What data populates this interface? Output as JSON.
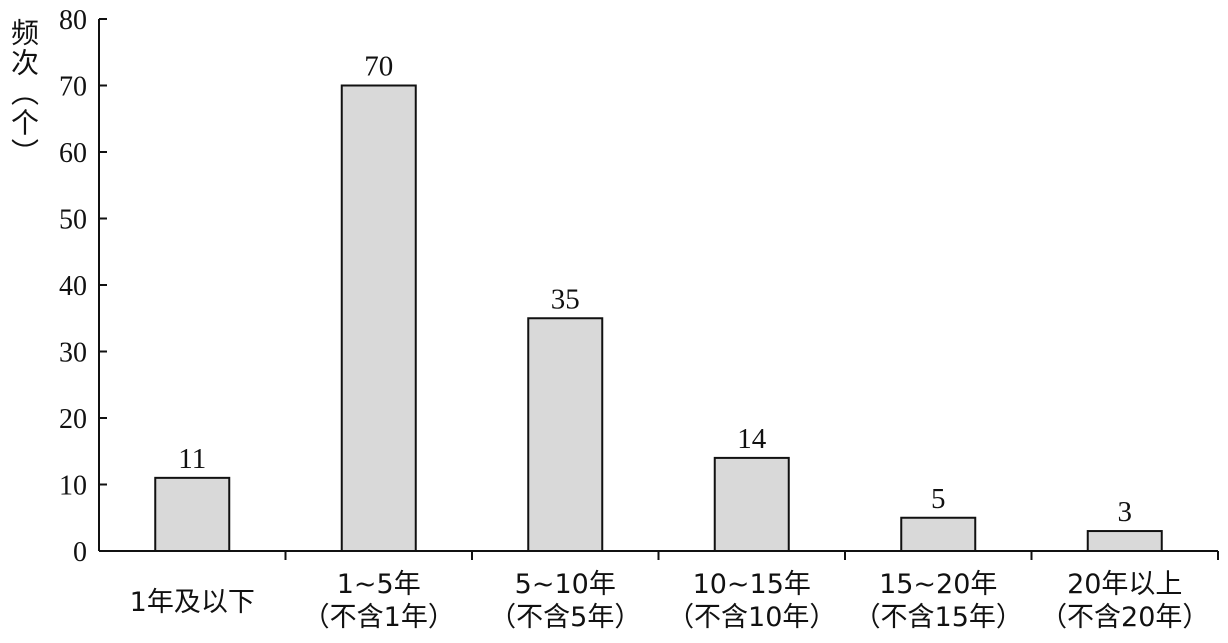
{
  "chart_data": {
    "type": "bar",
    "ylabel": "频次（个）",
    "xlabel": "",
    "ylim": [
      0,
      80
    ],
    "yticks": [
      0,
      10,
      20,
      30,
      40,
      50,
      60,
      70,
      80
    ],
    "grid": false,
    "categories": [
      [
        "1年及以下"
      ],
      [
        "1~5年",
        "（不含1年）"
      ],
      [
        "5~10年",
        "（不含5年）"
      ],
      [
        "10~15年",
        "（不含10年）"
      ],
      [
        "15~20年",
        "（不含15年）"
      ],
      [
        "20年以上",
        "（不含20年）"
      ]
    ],
    "values": [
      11,
      70,
      35,
      14,
      5,
      3
    ],
    "colors": {
      "bar_fill": "#d9d9d9",
      "bar_stroke": "#111111",
      "axis": "#111111"
    }
  }
}
